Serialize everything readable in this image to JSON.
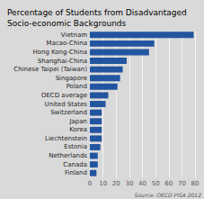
{
  "chart_data": {
    "type": "bar",
    "orientation": "horizontal",
    "title": "Percentage of Students from Disadvantaged\nSocio-economic Backgrounds",
    "annotations": [
      "Source: OECD PISA 2012"
    ],
    "categories": [
      "Vietnam",
      "Macao-China",
      "Hong Kong-China",
      "Shanghai-China",
      "Chinese Taipei (Taiwan)",
      "Singapore",
      "Poland",
      "OECD average",
      "United States",
      "Switzerland",
      "Japan",
      "Korea",
      "Liechtenstein",
      "Estonia",
      "Netherlands",
      "Canada",
      "Finland"
    ],
    "values": [
      79,
      49,
      45,
      28,
      25,
      23,
      21,
      14,
      12,
      9,
      9,
      9,
      9,
      8,
      6,
      6,
      5
    ],
    "color": "#2255A0",
    "xlim": [
      0,
      80
    ],
    "xticks": [
      0,
      10,
      20,
      30,
      40,
      50,
      60,
      70,
      80
    ],
    "grid": true
  }
}
